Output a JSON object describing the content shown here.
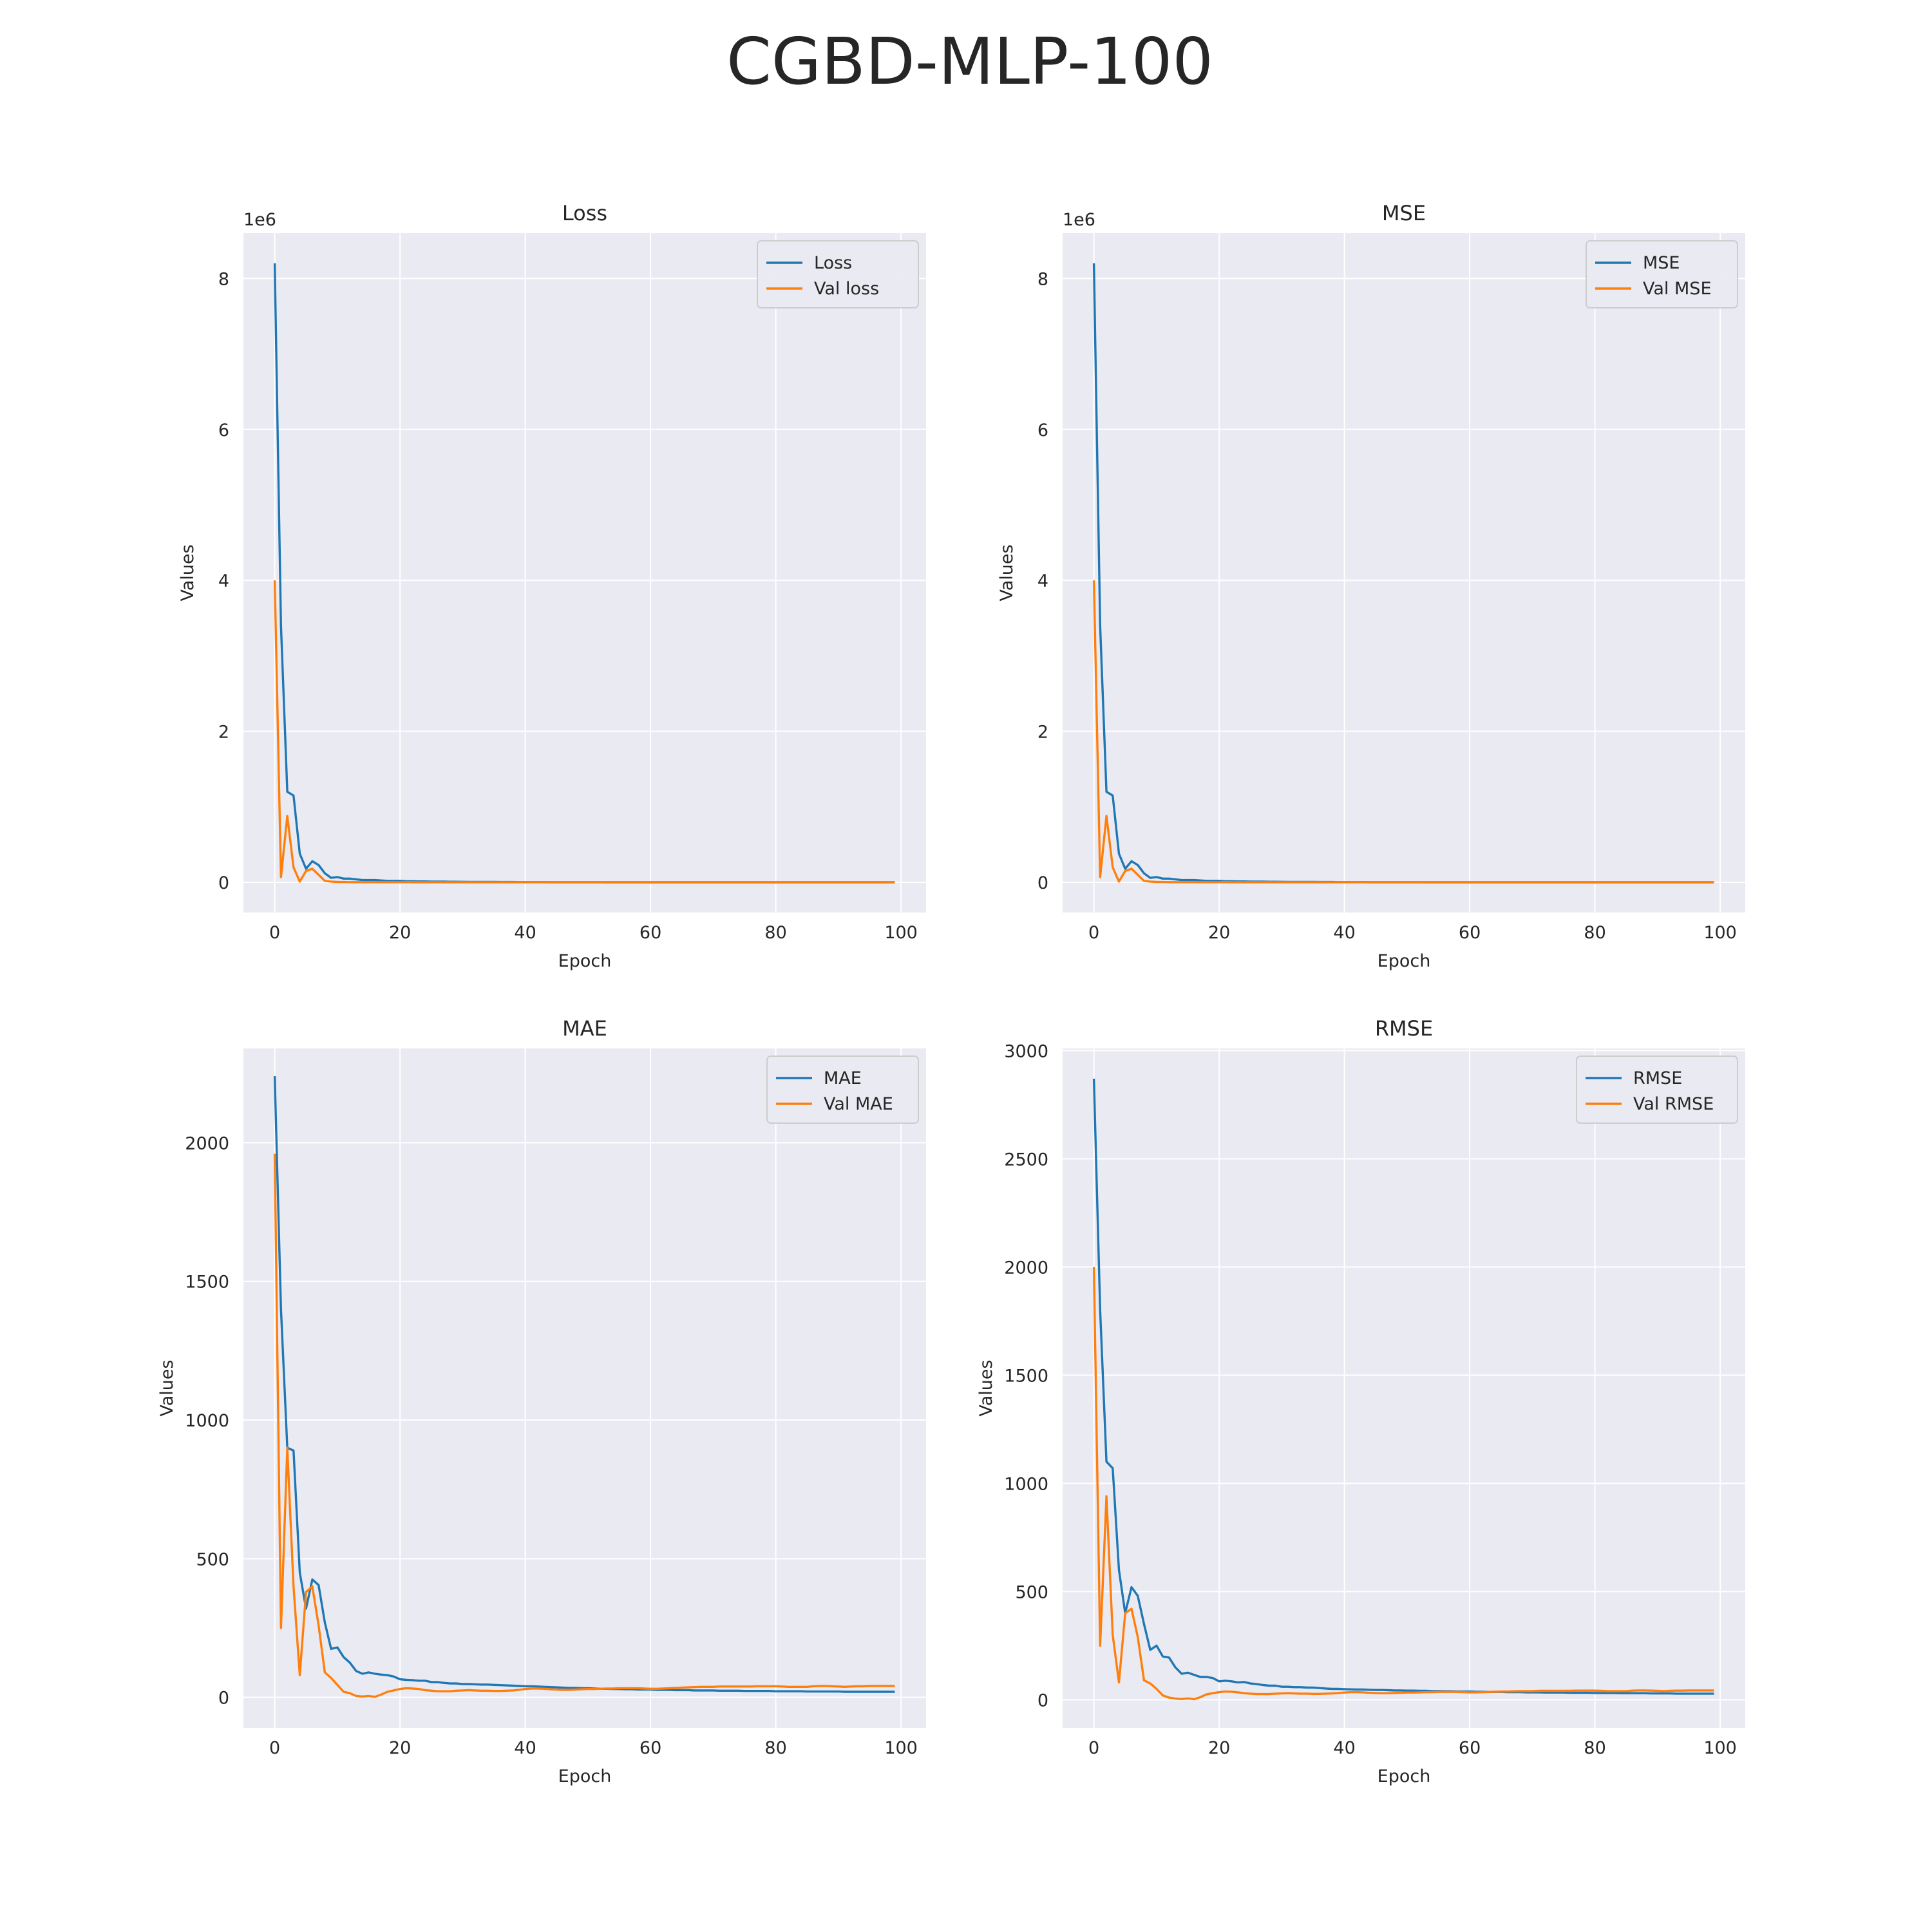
{
  "figure_title": "CGBD-MLP-100",
  "colors": {
    "train": "#1f77b4",
    "val": "#ff7f0e",
    "plot_bg": "#eaeaf2",
    "grid": "#ffffff"
  },
  "chart_data": [
    {
      "type": "line",
      "title": "Loss",
      "xlabel": "Epoch",
      "ylabel": "Values",
      "offset_text": "1e6",
      "xlim": [
        -5,
        104
      ],
      "ylim": [
        -0.4,
        8.6
      ],
      "xticks": [
        0,
        20,
        40,
        60,
        80,
        100
      ],
      "yticks": [
        0,
        2,
        4,
        6,
        8
      ],
      "legend": "top-right",
      "grid": true,
      "series": [
        {
          "name": "Loss",
          "color": "train",
          "values": [
            8.2,
            3.4,
            1.2,
            1.15,
            0.38,
            0.18,
            0.28,
            0.23,
            0.12,
            0.06,
            0.07,
            0.05,
            0.05,
            0.04,
            0.03,
            0.03,
            0.03,
            0.025,
            0.02,
            0.02,
            0.02,
            0.015,
            0.015,
            0.012,
            0.012,
            0.01,
            0.01,
            0.01,
            0.008,
            0.008,
            0.007,
            0.006,
            0.006,
            0.005,
            0.005,
            0.005,
            0.004,
            0.004,
            0.004,
            0.003,
            0.003,
            0.003,
            0.003,
            0.003,
            0.002,
            0.002,
            0.002,
            0.002,
            0.002,
            0.002,
            0.002,
            0.002,
            0.002,
            0.001,
            0.001,
            0.001,
            0.001,
            0.001,
            0.001,
            0.001,
            0.001,
            0.001,
            0.001,
            0.001,
            0.001,
            0.001,
            0.001,
            0.001,
            0.001,
            0.001,
            0.001,
            0.001,
            0.001,
            0.001,
            0.001,
            0.001,
            0.001,
            0.001,
            0.001,
            0.001,
            0.001,
            0.001,
            0.001,
            0.001,
            0.001,
            0.001,
            0.001,
            0.001,
            0.001,
            0.001,
            0.001,
            0.001,
            0.001,
            0.001,
            0.001,
            0.001,
            0.001,
            0.001,
            0.001,
            0.001
          ]
        },
        {
          "name": "Val loss",
          "color": "val",
          "values": [
            4.0,
            0.07,
            0.88,
            0.2,
            0.01,
            0.15,
            0.18,
            0.1,
            0.02,
            0.01,
            0.005,
            0.004,
            0.003,
            0.003,
            0.003,
            0.003,
            0.003,
            0.003,
            0.003,
            0.003,
            0.003,
            0.003,
            0.002,
            0.002,
            0.002,
            0.002,
            0.002,
            0.002,
            0.002,
            0.002,
            0.002,
            0.002,
            0.002,
            0.002,
            0.002,
            0.002,
            0.002,
            0.002,
            0.002,
            0.002,
            0.002,
            0.002,
            0.002,
            0.002,
            0.002,
            0.002,
            0.002,
            0.002,
            0.002,
            0.002,
            0.002,
            0.002,
            0.002,
            0.002,
            0.002,
            0.002,
            0.002,
            0.002,
            0.002,
            0.002,
            0.002,
            0.002,
            0.002,
            0.002,
            0.002,
            0.002,
            0.002,
            0.002,
            0.002,
            0.002,
            0.002,
            0.002,
            0.002,
            0.002,
            0.002,
            0.002,
            0.002,
            0.002,
            0.002,
            0.002,
            0.002,
            0.002,
            0.002,
            0.002,
            0.002,
            0.002,
            0.002,
            0.002,
            0.002,
            0.002,
            0.002,
            0.002,
            0.002,
            0.002,
            0.002,
            0.002,
            0.002,
            0.002,
            0.002,
            0.002
          ]
        }
      ]
    },
    {
      "type": "line",
      "title": "MSE",
      "xlabel": "Epoch",
      "ylabel": "Values",
      "offset_text": "1e6",
      "xlim": [
        -5,
        104
      ],
      "ylim": [
        -0.4,
        8.6
      ],
      "xticks": [
        0,
        20,
        40,
        60,
        80,
        100
      ],
      "yticks": [
        0,
        2,
        4,
        6,
        8
      ],
      "legend": "top-right",
      "grid": true,
      "series": [
        {
          "name": "MSE",
          "color": "train",
          "values": [
            8.2,
            3.4,
            1.2,
            1.15,
            0.38,
            0.18,
            0.28,
            0.23,
            0.12,
            0.06,
            0.07,
            0.05,
            0.05,
            0.04,
            0.03,
            0.03,
            0.03,
            0.025,
            0.02,
            0.02,
            0.02,
            0.015,
            0.015,
            0.012,
            0.012,
            0.01,
            0.01,
            0.01,
            0.008,
            0.008,
            0.007,
            0.006,
            0.006,
            0.005,
            0.005,
            0.005,
            0.004,
            0.004,
            0.004,
            0.003,
            0.003,
            0.003,
            0.003,
            0.003,
            0.002,
            0.002,
            0.002,
            0.002,
            0.002,
            0.002,
            0.002,
            0.002,
            0.002,
            0.001,
            0.001,
            0.001,
            0.001,
            0.001,
            0.001,
            0.001,
            0.001,
            0.001,
            0.001,
            0.001,
            0.001,
            0.001,
            0.001,
            0.001,
            0.001,
            0.001,
            0.001,
            0.001,
            0.001,
            0.001,
            0.001,
            0.001,
            0.001,
            0.001,
            0.001,
            0.001,
            0.001,
            0.001,
            0.001,
            0.001,
            0.001,
            0.001,
            0.001,
            0.001,
            0.001,
            0.001,
            0.001,
            0.001,
            0.001,
            0.001,
            0.001,
            0.001,
            0.001,
            0.001,
            0.001,
            0.001
          ]
        },
        {
          "name": "Val MSE",
          "color": "val",
          "values": [
            4.0,
            0.07,
            0.88,
            0.2,
            0.01,
            0.15,
            0.18,
            0.1,
            0.02,
            0.01,
            0.005,
            0.004,
            0.003,
            0.003,
            0.003,
            0.003,
            0.003,
            0.003,
            0.003,
            0.003,
            0.003,
            0.003,
            0.002,
            0.002,
            0.002,
            0.002,
            0.002,
            0.002,
            0.002,
            0.002,
            0.002,
            0.002,
            0.002,
            0.002,
            0.002,
            0.002,
            0.002,
            0.002,
            0.002,
            0.002,
            0.002,
            0.002,
            0.002,
            0.002,
            0.002,
            0.002,
            0.002,
            0.002,
            0.002,
            0.002,
            0.002,
            0.002,
            0.002,
            0.002,
            0.002,
            0.002,
            0.002,
            0.002,
            0.002,
            0.002,
            0.002,
            0.002,
            0.002,
            0.002,
            0.002,
            0.002,
            0.002,
            0.002,
            0.002,
            0.002,
            0.002,
            0.002,
            0.002,
            0.002,
            0.002,
            0.002,
            0.002,
            0.002,
            0.002,
            0.002,
            0.002,
            0.002,
            0.002,
            0.002,
            0.002,
            0.002,
            0.002,
            0.002,
            0.002,
            0.002,
            0.002,
            0.002,
            0.002,
            0.002,
            0.002,
            0.002,
            0.002,
            0.002,
            0.002,
            0.002
          ]
        }
      ]
    },
    {
      "type": "line",
      "title": "MAE",
      "xlabel": "Epoch",
      "ylabel": "Values",
      "offset_text": "",
      "xlim": [
        -5,
        104
      ],
      "ylim": [
        -110,
        2340
      ],
      "xticks": [
        0,
        20,
        40,
        60,
        80,
        100
      ],
      "yticks": [
        0,
        500,
        1000,
        1500,
        2000
      ],
      "legend": "top-right",
      "grid": true,
      "series": [
        {
          "name": "MAE",
          "color": "train",
          "values": [
            2240,
            1400,
            900,
            890,
            450,
            320,
            425,
            405,
            270,
            175,
            180,
            145,
            125,
            95,
            85,
            90,
            85,
            82,
            80,
            75,
            65,
            63,
            62,
            60,
            60,
            55,
            55,
            52,
            50,
            50,
            48,
            48,
            47,
            46,
            46,
            45,
            44,
            43,
            42,
            41,
            40,
            40,
            39,
            38,
            37,
            36,
            35,
            34,
            34,
            33,
            33,
            32,
            31,
            31,
            30,
            30,
            29,
            29,
            28,
            28,
            28,
            27,
            27,
            27,
            26,
            26,
            26,
            25,
            25,
            25,
            25,
            24,
            24,
            24,
            24,
            23,
            23,
            23,
            23,
            23,
            22,
            22,
            22,
            22,
            22,
            21,
            21,
            21,
            21,
            21,
            21,
            20,
            20,
            20,
            20,
            20,
            20,
            20,
            20,
            20
          ]
        },
        {
          "name": "Val MAE",
          "color": "val",
          "values": [
            1960,
            250,
            900,
            400,
            80,
            380,
            400,
            260,
            90,
            70,
            45,
            20,
            15,
            5,
            3,
            5,
            2,
            10,
            20,
            25,
            30,
            33,
            32,
            30,
            26,
            24,
            22,
            22,
            22,
            24,
            25,
            26,
            25,
            24,
            24,
            23,
            23,
            24,
            25,
            27,
            30,
            32,
            32,
            31,
            29,
            28,
            27,
            27,
            28,
            29,
            30,
            30,
            31,
            32,
            32,
            33,
            33,
            33,
            33,
            32,
            31,
            31,
            32,
            33,
            34,
            35,
            36,
            37,
            38,
            38,
            38,
            39,
            39,
            39,
            39,
            39,
            39,
            40,
            40,
            40,
            40,
            39,
            38,
            38,
            38,
            38,
            40,
            41,
            41,
            40,
            39,
            38,
            39,
            40,
            40,
            41,
            41,
            41,
            41,
            41
          ]
        }
      ]
    },
    {
      "type": "line",
      "title": "RMSE",
      "xlabel": "Epoch",
      "ylabel": "Values",
      "offset_text": "",
      "xlim": [
        -5,
        104
      ],
      "ylim": [
        -130,
        3010
      ],
      "xticks": [
        0,
        20,
        40,
        60,
        80,
        100
      ],
      "yticks": [
        0,
        500,
        1000,
        1500,
        2000,
        2500,
        3000
      ],
      "legend": "top-right",
      "grid": true,
      "series": [
        {
          "name": "RMSE",
          "color": "train",
          "values": [
            2870,
            1800,
            1100,
            1070,
            600,
            400,
            520,
            480,
            350,
            230,
            250,
            200,
            195,
            150,
            120,
            125,
            115,
            105,
            105,
            100,
            85,
            88,
            85,
            80,
            82,
            75,
            72,
            68,
            65,
            65,
            60,
            60,
            58,
            58,
            56,
            56,
            54,
            52,
            50,
            50,
            49,
            48,
            47,
            47,
            46,
            45,
            45,
            44,
            43,
            43,
            42,
            42,
            41,
            41,
            40,
            40,
            39,
            39,
            38,
            38,
            38,
            37,
            37,
            36,
            36,
            36,
            35,
            35,
            35,
            34,
            34,
            34,
            33,
            33,
            33,
            33,
            32,
            32,
            32,
            32,
            31,
            31,
            31,
            31,
            30,
            30,
            30,
            30,
            30,
            29,
            29,
            29,
            29,
            28,
            28,
            28,
            28,
            28,
            28,
            28
          ]
        },
        {
          "name": "Val RMSE",
          "color": "val",
          "values": [
            2000,
            250,
            940,
            300,
            80,
            400,
            420,
            290,
            90,
            75,
            50,
            20,
            10,
            5,
            3,
            6,
            2,
            12,
            25,
            30,
            35,
            38,
            37,
            34,
            30,
            28,
            26,
            26,
            26,
            28,
            29,
            30,
            29,
            28,
            28,
            27,
            27,
            28,
            29,
            31,
            33,
            35,
            35,
            34,
            32,
            31,
            30,
            30,
            31,
            32,
            33,
            33,
            34,
            35,
            35,
            36,
            36,
            36,
            36,
            35,
            34,
            34,
            35,
            36,
            37,
            38,
            38,
            39,
            40,
            40,
            40,
            41,
            41,
            41,
            41,
            41,
            41,
            42,
            42,
            42,
            42,
            41,
            40,
            40,
            40,
            40,
            42,
            43,
            43,
            42,
            41,
            40,
            41,
            42,
            42,
            43,
            43,
            43,
            43,
            43
          ]
        }
      ]
    }
  ]
}
